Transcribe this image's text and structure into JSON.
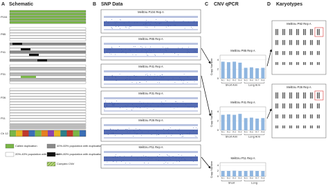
{
  "panels": {
    "a": {
      "letter": "A",
      "title": "Schematic",
      "rows": [
        "P104",
        "P85",
        "P41",
        "P31",
        "P26",
        "P11"
      ],
      "chromosome": "Ch 12",
      "legend": [
        "Called duplication",
        "20%-40% population with duplication",
        "40%-60% population with duplication",
        "60%-80% population with duplication",
        "Complex CNV"
      ]
    },
    "b": {
      "letter": "B",
      "title": "SNP Data",
      "plots": [
        "MelEnu P104 Rep A",
        "MelEnu P85 Rep A",
        "MelEnu P41 Rep A",
        "MelEnu P31 Rep A",
        "MelEnu P26 Rep A",
        "MelEnu P11 Rep A"
      ]
    },
    "c": {
      "letter": "C",
      "title": "CNV qPCR",
      "charts": [
        {
          "title": "MelEnu P85 Rep A",
          "y_label": "Copy Number",
          "categories": [
            "Pr 1",
            "Pr 2",
            "Pr 3",
            "Pr 4",
            "Pr 5",
            "Pr 6",
            "Pr 7",
            "Pr 8"
          ],
          "values": [
            3.6,
            3.5,
            3.6,
            3.4,
            2.3,
            2.4,
            2.2,
            2.3
          ],
          "ylim": [
            0,
            5
          ],
          "yticks": [
            0,
            2,
            4
          ],
          "groups": [
            "Short Arm",
            "Long Arm"
          ],
          "color": "#8fb6e0"
        },
        {
          "title": "MelEnu P41 Rep A",
          "y_label": "Copy Number",
          "categories": [
            "Pr 1",
            "Pr 2",
            "Pr 3",
            "Pr 4",
            "Pr 5",
            "Pr 6",
            "Pr 7",
            "Pr 8"
          ],
          "values": [
            3.3,
            3.4,
            3.3,
            3.5,
            2.6,
            2.7,
            2.5,
            2.6
          ],
          "ylim": [
            0,
            5
          ],
          "yticks": [
            0,
            2,
            4
          ],
          "groups": [
            "Short Arm",
            "Long Arm"
          ],
          "color": "#8fb6e0"
        },
        {
          "title": "MelEnu P11 Rep A",
          "y_label": "Copy Number",
          "categories": [
            "Pr 1",
            "Pr 2",
            "Pr 3",
            "Pr 4",
            "Pr 5",
            "Pr 6",
            "Pr 7",
            "Pr 8"
          ],
          "values": [
            2,
            2,
            2.1,
            2,
            2,
            2.1,
            2,
            2
          ],
          "ylim": [
            0,
            5
          ],
          "yticks": [
            0,
            2,
            4
          ],
          "groups": [
            "Short",
            "Long"
          ],
          "color": "#8fb6e0"
        }
      ]
    },
    "d": {
      "letter": "D",
      "title": "Karyotypes",
      "images": [
        "MelEnu P92 Rep A",
        "MelEnu P26 Rep A"
      ]
    }
  }
}
